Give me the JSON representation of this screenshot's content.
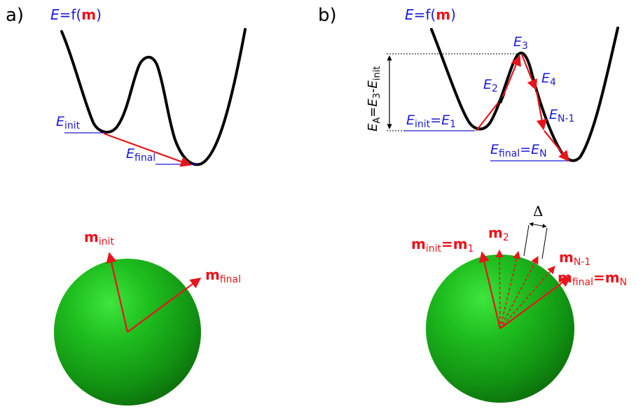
{
  "panel_a": {
    "tag": "a)",
    "energy_label": {
      "e": "E",
      "eq": "=f(",
      "m": "m",
      "close": ")"
    },
    "e_init": {
      "e": "E",
      "sub": "init"
    },
    "e_final": {
      "e": "E",
      "sub": "final"
    },
    "m_init": {
      "m": "m",
      "sub": "init"
    },
    "m_final": {
      "m": "m",
      "sub": "final"
    }
  },
  "panel_b": {
    "tag": "b)",
    "energy_label": {
      "e": "E",
      "eq": "=f(",
      "m": "m",
      "close": ")"
    },
    "e3": {
      "e": "E",
      "sub": "3"
    },
    "e2": {
      "e": "E",
      "sub": "2"
    },
    "e4": {
      "e": "E",
      "sub": "4"
    },
    "en1": {
      "e": "E",
      "sub": "N-1"
    },
    "e_init_e1": {
      "e": "E",
      "sub": "init",
      "eq": "=",
      "e2": "E",
      "sub2": "1"
    },
    "e_final_en": {
      "e": "E",
      "sub": "final",
      "eq": "=",
      "e2": "E",
      "sub2": "N"
    },
    "activation": {
      "e": "E",
      "sub": "A",
      "eq1": "=",
      "e3": "E",
      "sub3": "3",
      "minus": "-",
      "e4": "E",
      "sub4": "init"
    },
    "delta": "Δ",
    "m2": {
      "m": "m",
      "sub": "2"
    },
    "m_init_m1": {
      "m": "m",
      "sub": "init",
      "eq": "=",
      "m2": "m",
      "sub2": "1"
    },
    "m_n1": {
      "m": "m",
      "sub": "N-1"
    },
    "m_final_mn": {
      "m": "m",
      "sub": "final",
      "eq": "=",
      "m2": "m",
      "sub2": "N"
    }
  },
  "colors": {
    "label_blue": "#1a1ad6",
    "arrow_red": "#e8141b",
    "sphere_green": "#16a316",
    "curve": "#000000"
  }
}
